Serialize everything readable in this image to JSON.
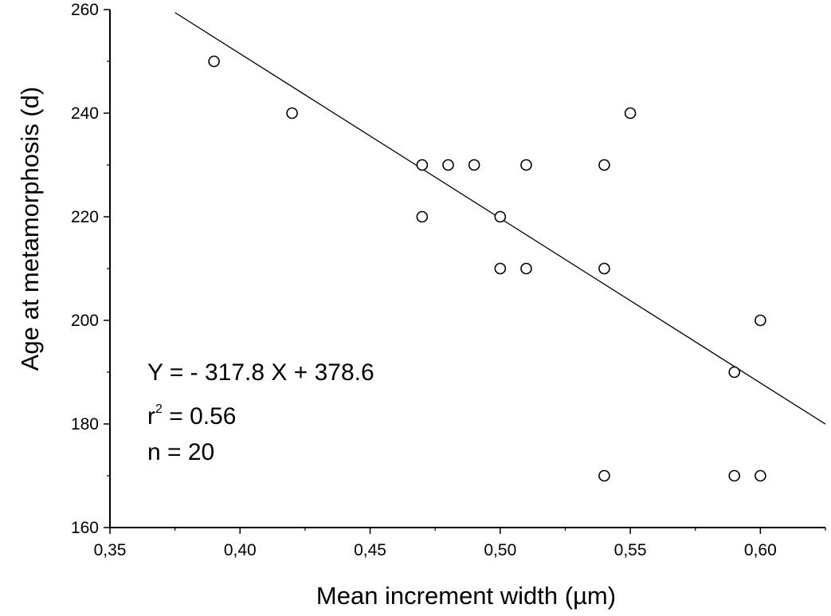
{
  "chart_data": {
    "type": "scatter",
    "title": "",
    "xlabel": "Mean increment width (µm)",
    "ylabel": "Age at metamorphosis (d)",
    "xlim": [
      0.35,
      0.625
    ],
    "ylim": [
      160,
      260
    ],
    "x_ticks": [
      0.35,
      0.4,
      0.45,
      0.5,
      0.55,
      0.6
    ],
    "x_tick_labels": [
      "0,35",
      "0,40",
      "0,45",
      "0,50",
      "0,55",
      "0,60"
    ],
    "y_ticks": [
      160,
      180,
      200,
      220,
      240,
      260
    ],
    "y_tick_labels": [
      "160",
      "180",
      "200",
      "220",
      "240",
      "260"
    ],
    "grid": false,
    "marker": "open-circle",
    "points": [
      {
        "x": 0.39,
        "y": 250
      },
      {
        "x": 0.42,
        "y": 240
      },
      {
        "x": 0.47,
        "y": 230
      },
      {
        "x": 0.47,
        "y": 220
      },
      {
        "x": 0.48,
        "y": 230
      },
      {
        "x": 0.49,
        "y": 230
      },
      {
        "x": 0.5,
        "y": 220
      },
      {
        "x": 0.5,
        "y": 210
      },
      {
        "x": 0.51,
        "y": 230
      },
      {
        "x": 0.51,
        "y": 210
      },
      {
        "x": 0.54,
        "y": 230
      },
      {
        "x": 0.54,
        "y": 210
      },
      {
        "x": 0.54,
        "y": 170
      },
      {
        "x": 0.55,
        "y": 240
      },
      {
        "x": 0.59,
        "y": 190
      },
      {
        "x": 0.59,
        "y": 170
      },
      {
        "x": 0.6,
        "y": 200
      },
      {
        "x": 0.6,
        "y": 170
      }
    ],
    "regression": {
      "slope": -317.8,
      "intercept": 378.6,
      "x_range": [
        0.375,
        0.625
      ]
    },
    "annotations": {
      "equation": "Y = - 317.8 X + 378.6",
      "r2_base": "r",
      "r2_sup": "2",
      "r2_value": " = 0.56",
      "n": "n = 20"
    }
  }
}
